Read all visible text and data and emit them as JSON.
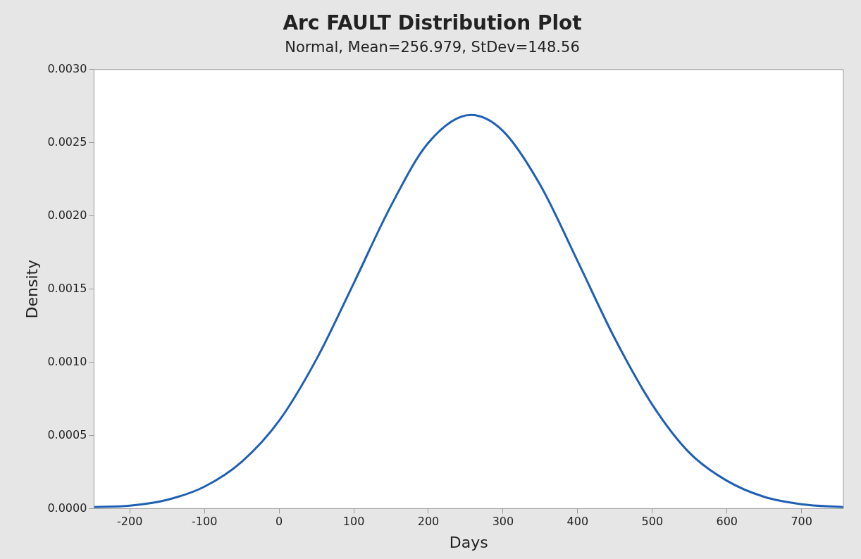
{
  "chart_data": {
    "type": "line",
    "title": "Arc FAULT Distribution Plot",
    "subtitle": "Normal, Mean=256.979, StDev=148.56",
    "xlabel": "Days",
    "ylabel": "Density",
    "x": [
      -248,
      -200,
      -150,
      -100,
      -50,
      0,
      50,
      100,
      150,
      200,
      256.979,
      300,
      350,
      400,
      450,
      500,
      550,
      600,
      650,
      700,
      756
    ],
    "series": [
      {
        "color": "#1f5fb4",
        "values": [
          1e-05,
          2e-05,
          6e-05,
          0.00015,
          0.00032,
          0.0006,
          0.00102,
          0.00154,
          0.00207,
          0.0025,
          0.00269,
          0.00258,
          0.00221,
          0.00169,
          0.00116,
          0.00071,
          0.00038,
          0.00019,
          8e-05,
          3e-05,
          1e-05
        ]
      }
    ],
    "xlim": [
      -248,
      756
    ],
    "xticks": [
      -200,
      -100,
      0,
      100,
      200,
      300,
      400,
      500,
      600,
      700
    ],
    "ylim": [
      0,
      0.003
    ],
    "yticks": [
      {
        "value": 0,
        "label": "0.0000"
      },
      {
        "value": 0.0005,
        "label": "0.0005"
      },
      {
        "value": 0.001,
        "label": "0.0010"
      },
      {
        "value": 0.0015,
        "label": "0.0015"
      },
      {
        "value": 0.002,
        "label": "0.0020"
      },
      {
        "value": 0.0025,
        "label": "0.0025"
      },
      {
        "value": 0.003,
        "label": "0.0030"
      }
    ],
    "grid": false,
    "legend": false,
    "marker": "none",
    "line_style": "solid"
  }
}
